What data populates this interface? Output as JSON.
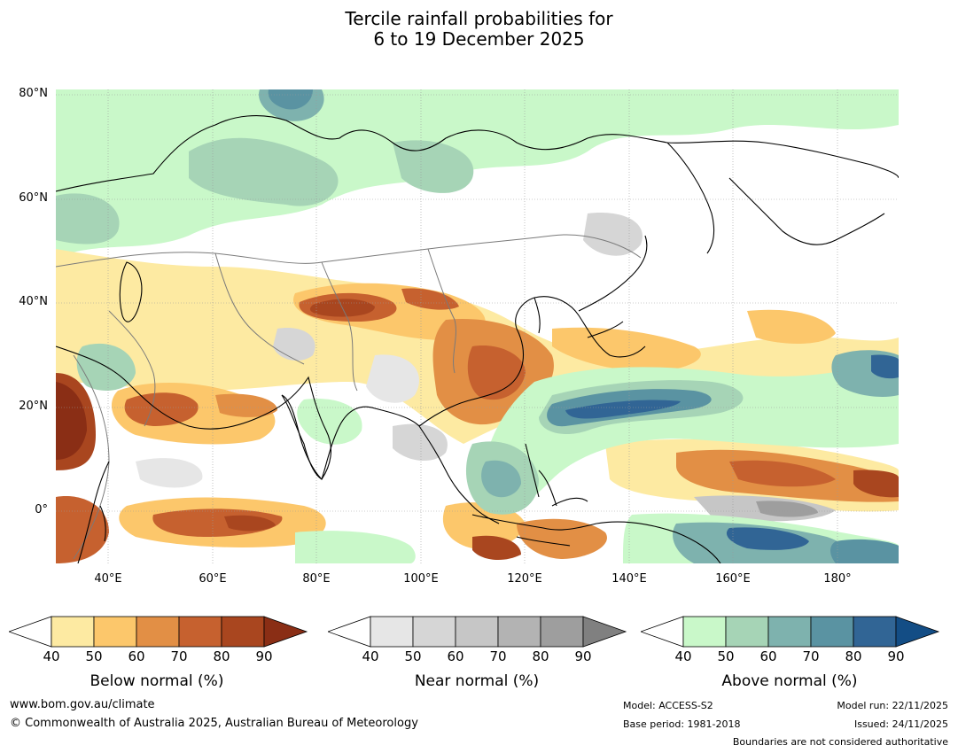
{
  "title_line1": "Tercile rainfall probabilities for",
  "title_line2": "6 to 19 December 2025",
  "lat_labels": [
    "80°N",
    "60°N",
    "40°N",
    "20°N",
    "0°"
  ],
  "lon_labels": [
    "40°E",
    "60°E",
    "80°E",
    "100°E",
    "120°E",
    "140°E",
    "160°E",
    "180°"
  ],
  "legends": {
    "below": {
      "label": "Below normal (%)",
      "ticks": [
        "40",
        "50",
        "60",
        "70",
        "80",
        "90"
      ],
      "colors": [
        "#fdeaa2",
        "#fcc76b",
        "#e28f45",
        "#c6612f",
        "#a9461f",
        "#8a2e15"
      ]
    },
    "near": {
      "label": "Near normal (%)",
      "ticks": [
        "40",
        "50",
        "60",
        "70",
        "80",
        "90"
      ],
      "colors": [
        "#e6e6e6",
        "#d6d6d6",
        "#c6c6c6",
        "#b3b3b3",
        "#9e9e9e",
        "#808080"
      ]
    },
    "above": {
      "label": "Above normal (%)",
      "ticks": [
        "40",
        "50",
        "60",
        "70",
        "80",
        "90"
      ],
      "colors": [
        "#c9f8c9",
        "#a6d4b6",
        "#7eb2ae",
        "#5a93a2",
        "#316595",
        "#134d85"
      ]
    }
  },
  "footer": {
    "url": "www.bom.gov.au/climate",
    "copyright": "© Commonwealth of Australia 2025, Australian Bureau of Meteorology",
    "model": "Model: ACCESS-S2",
    "base_period": "Base period: 1981-2018",
    "model_run": "Model run: 22/11/2025",
    "issued": "Issued: 24/11/2025",
    "disclaimer": "Boundaries are not considered authoritative"
  }
}
